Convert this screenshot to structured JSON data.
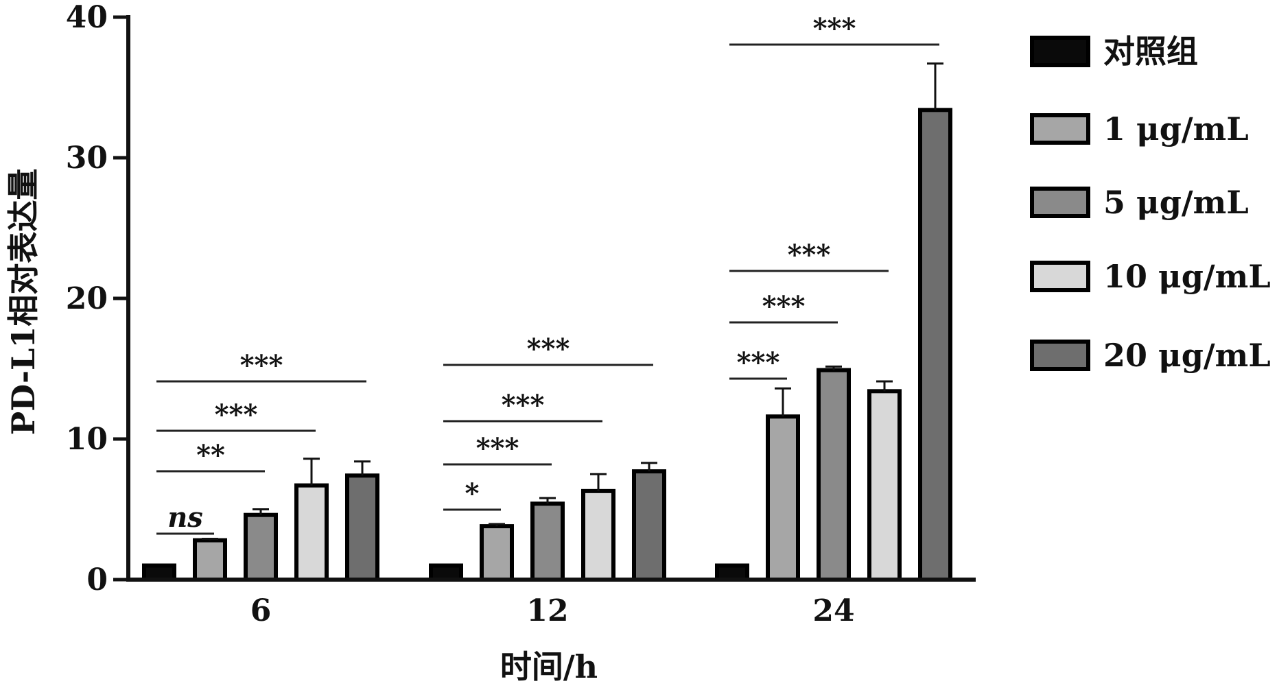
{
  "chart_data": {
    "type": "bar",
    "xlabel": "时间/h",
    "ylabel": "PD-L1相对表达量",
    "ylim": [
      0,
      40
    ],
    "yticks": [
      0,
      10,
      20,
      30,
      40
    ],
    "categories": [
      "6",
      "12",
      "24"
    ],
    "legend_position": "right",
    "series": [
      {
        "name": "对照组",
        "color": "#0a0a0a",
        "values": [
          1.0,
          1.0,
          1.0
        ],
        "errors": [
          0.0,
          0.0,
          0.0
        ]
      },
      {
        "name": "1 μg/mL",
        "color": "#a6a6a6",
        "values": [
          2.8,
          3.8,
          11.6
        ],
        "errors": [
          0.1,
          0.15,
          2.0
        ]
      },
      {
        "name": "5 μg/mL",
        "color": "#8a8a8a",
        "values": [
          4.6,
          5.4,
          14.9
        ],
        "errors": [
          0.4,
          0.4,
          0.25
        ]
      },
      {
        "name": "10 μg/mL",
        "color": "#d8d8d8",
        "values": [
          6.7,
          6.3,
          13.4
        ],
        "errors": [
          1.9,
          1.2,
          0.7
        ]
      },
      {
        "name": "20 μg/mL",
        "color": "#6e6e6e",
        "values": [
          7.4,
          7.7,
          33.4
        ],
        "errors": [
          1.0,
          0.6,
          3.3
        ]
      }
    ],
    "significance": [
      {
        "category": "6",
        "compare_series": 1,
        "label": "ns"
      },
      {
        "category": "6",
        "compare_series": 2,
        "label": "**"
      },
      {
        "category": "6",
        "compare_series": 3,
        "label": "***"
      },
      {
        "category": "6",
        "compare_series": 4,
        "label": "***"
      },
      {
        "category": "12",
        "compare_series": 1,
        "label": "*"
      },
      {
        "category": "12",
        "compare_series": 2,
        "label": "***"
      },
      {
        "category": "12",
        "compare_series": 3,
        "label": "***"
      },
      {
        "category": "12",
        "compare_series": 4,
        "label": "***"
      },
      {
        "category": "24",
        "compare_series": 1,
        "label": "***"
      },
      {
        "category": "24",
        "compare_series": 2,
        "label": "***"
      },
      {
        "category": "24",
        "compare_series": 3,
        "label": "***"
      },
      {
        "category": "24",
        "compare_series": 4,
        "label": "***"
      }
    ]
  }
}
